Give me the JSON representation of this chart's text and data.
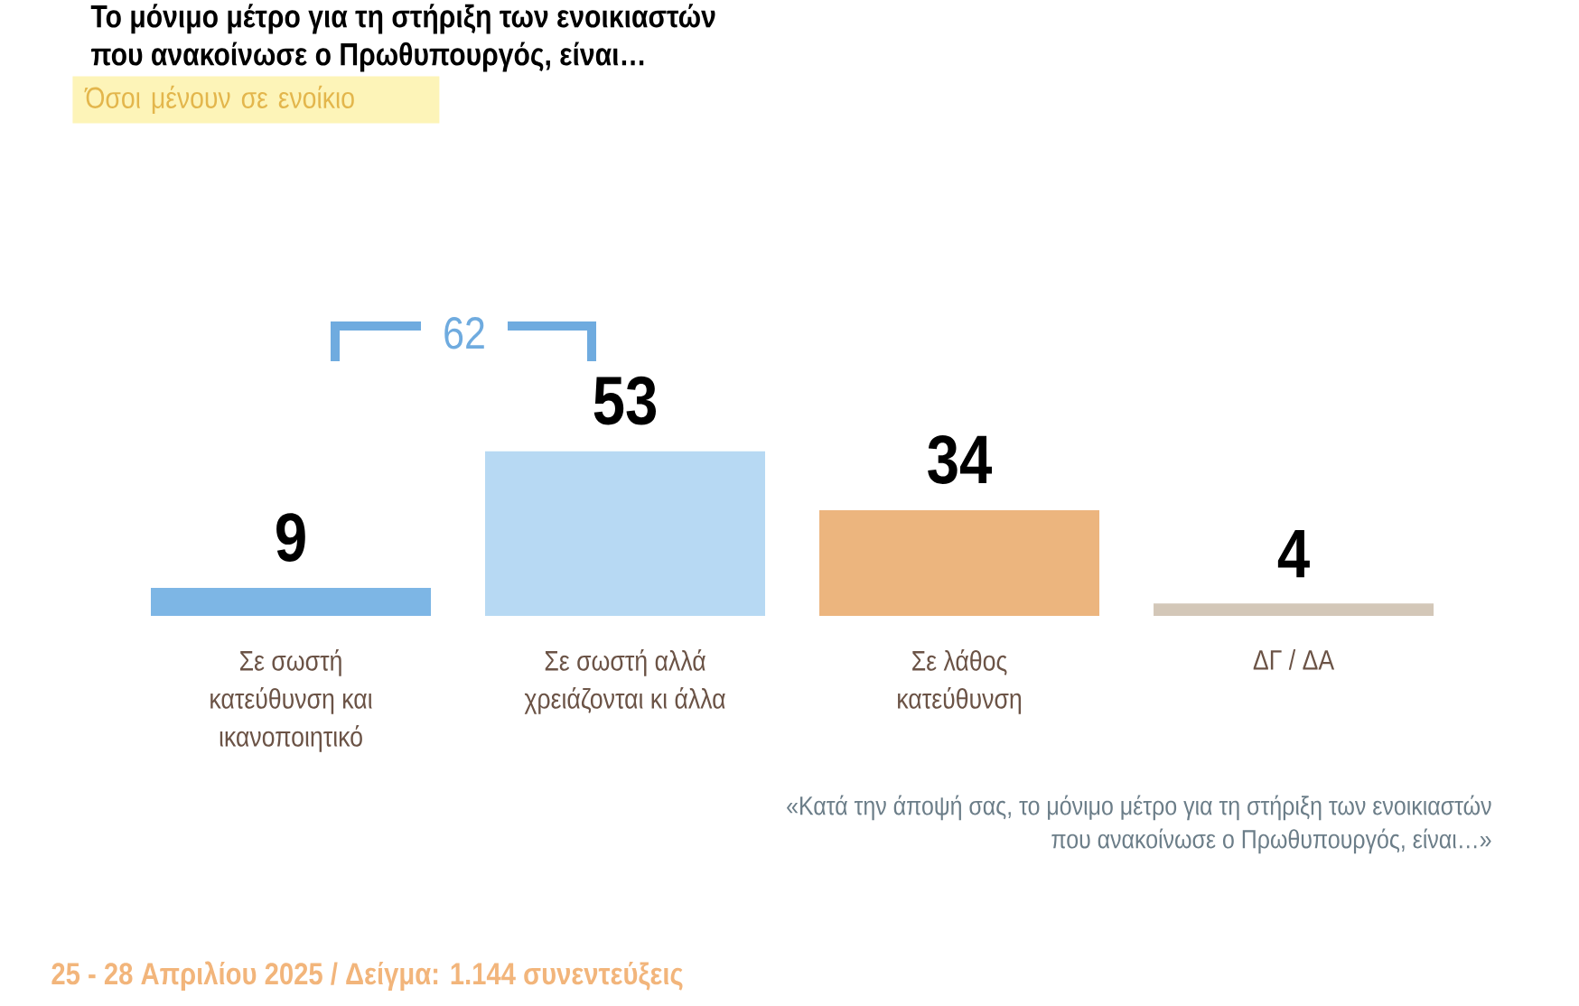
{
  "chart_data": {
    "type": "bar",
    "title": "Το μόνιμο μέτρο για τη στήριξη των ενοικιαστών που ανακοίνωσε ο Πρωθυπουργός, είναι…",
    "subtitle": "Όσοι μένουν σε ενοίκιο",
    "categories": [
      "Σε σωστή κατεύθυνση και ικανοποιητικό",
      "Σε σωστή αλλά χρειάζονται κι άλλα",
      "Σε λάθος κατεύθυνση",
      "ΔΓ / ΔΑ"
    ],
    "values": [
      9,
      53,
      34,
      4
    ],
    "colors": [
      "#7db6e5",
      "#b7d9f3",
      "#ecb57e",
      "#d3c7b8"
    ],
    "data_labels": true,
    "tick_labels": "x",
    "annotations": [
      "62",
      "«Κατά την άποψή σας, το μόνιμο μέτρο για τη στήριξη των ενοικιαστών που ανακοίνωσε ο Πρωθυπουργός, είναι…»",
      "25 - 28 Απριλίου 2025 / Δείγμα: 1.144 συνεντεύξεις"
    ]
  }
}
